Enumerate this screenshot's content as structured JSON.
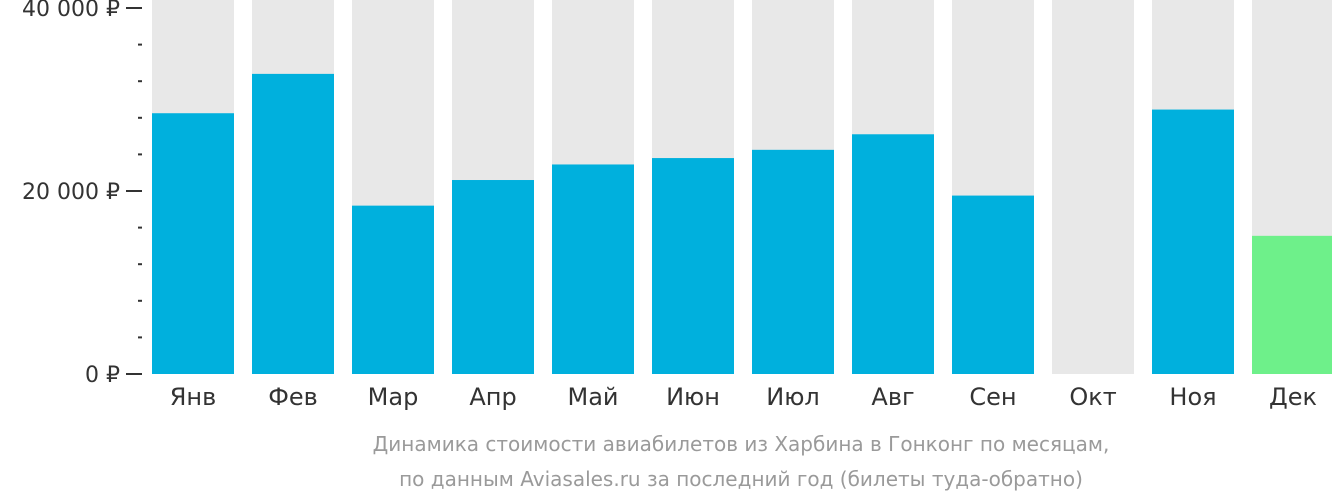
{
  "chart_data": {
    "type": "bar",
    "categories": [
      "Янв",
      "Фев",
      "Мар",
      "Апр",
      "Май",
      "Июн",
      "Июл",
      "Авг",
      "Сен",
      "Окт",
      "Ноя",
      "Дек"
    ],
    "values": [
      28500,
      32800,
      18400,
      21200,
      22900,
      23600,
      24500,
      26200,
      19500,
      null,
      28900,
      15100
    ],
    "highlight_index": 11,
    "ylim": [
      0,
      40000
    ],
    "y_ticks_major": [
      {
        "value": 0,
        "label": "0 ₽"
      },
      {
        "value": 20000,
        "label": "20 000 ₽"
      },
      {
        "value": 40000,
        "label": "40 000 ₽"
      }
    ],
    "y_ticks_minor_step": 4000,
    "grid": false,
    "colors": {
      "bar": "#00b0dd",
      "bar_highlight": "#6ef08a",
      "background_bar": "#e8e8e8",
      "axis_text": "#333333",
      "caption_text": "#9a9a9a"
    }
  },
  "caption": {
    "line1": "Динамика стоимости авиабилетов из Харбина в Гонконг по месяцам,",
    "line2": "по данным Aviasales.ru за последний год (билеты туда-обратно)"
  }
}
